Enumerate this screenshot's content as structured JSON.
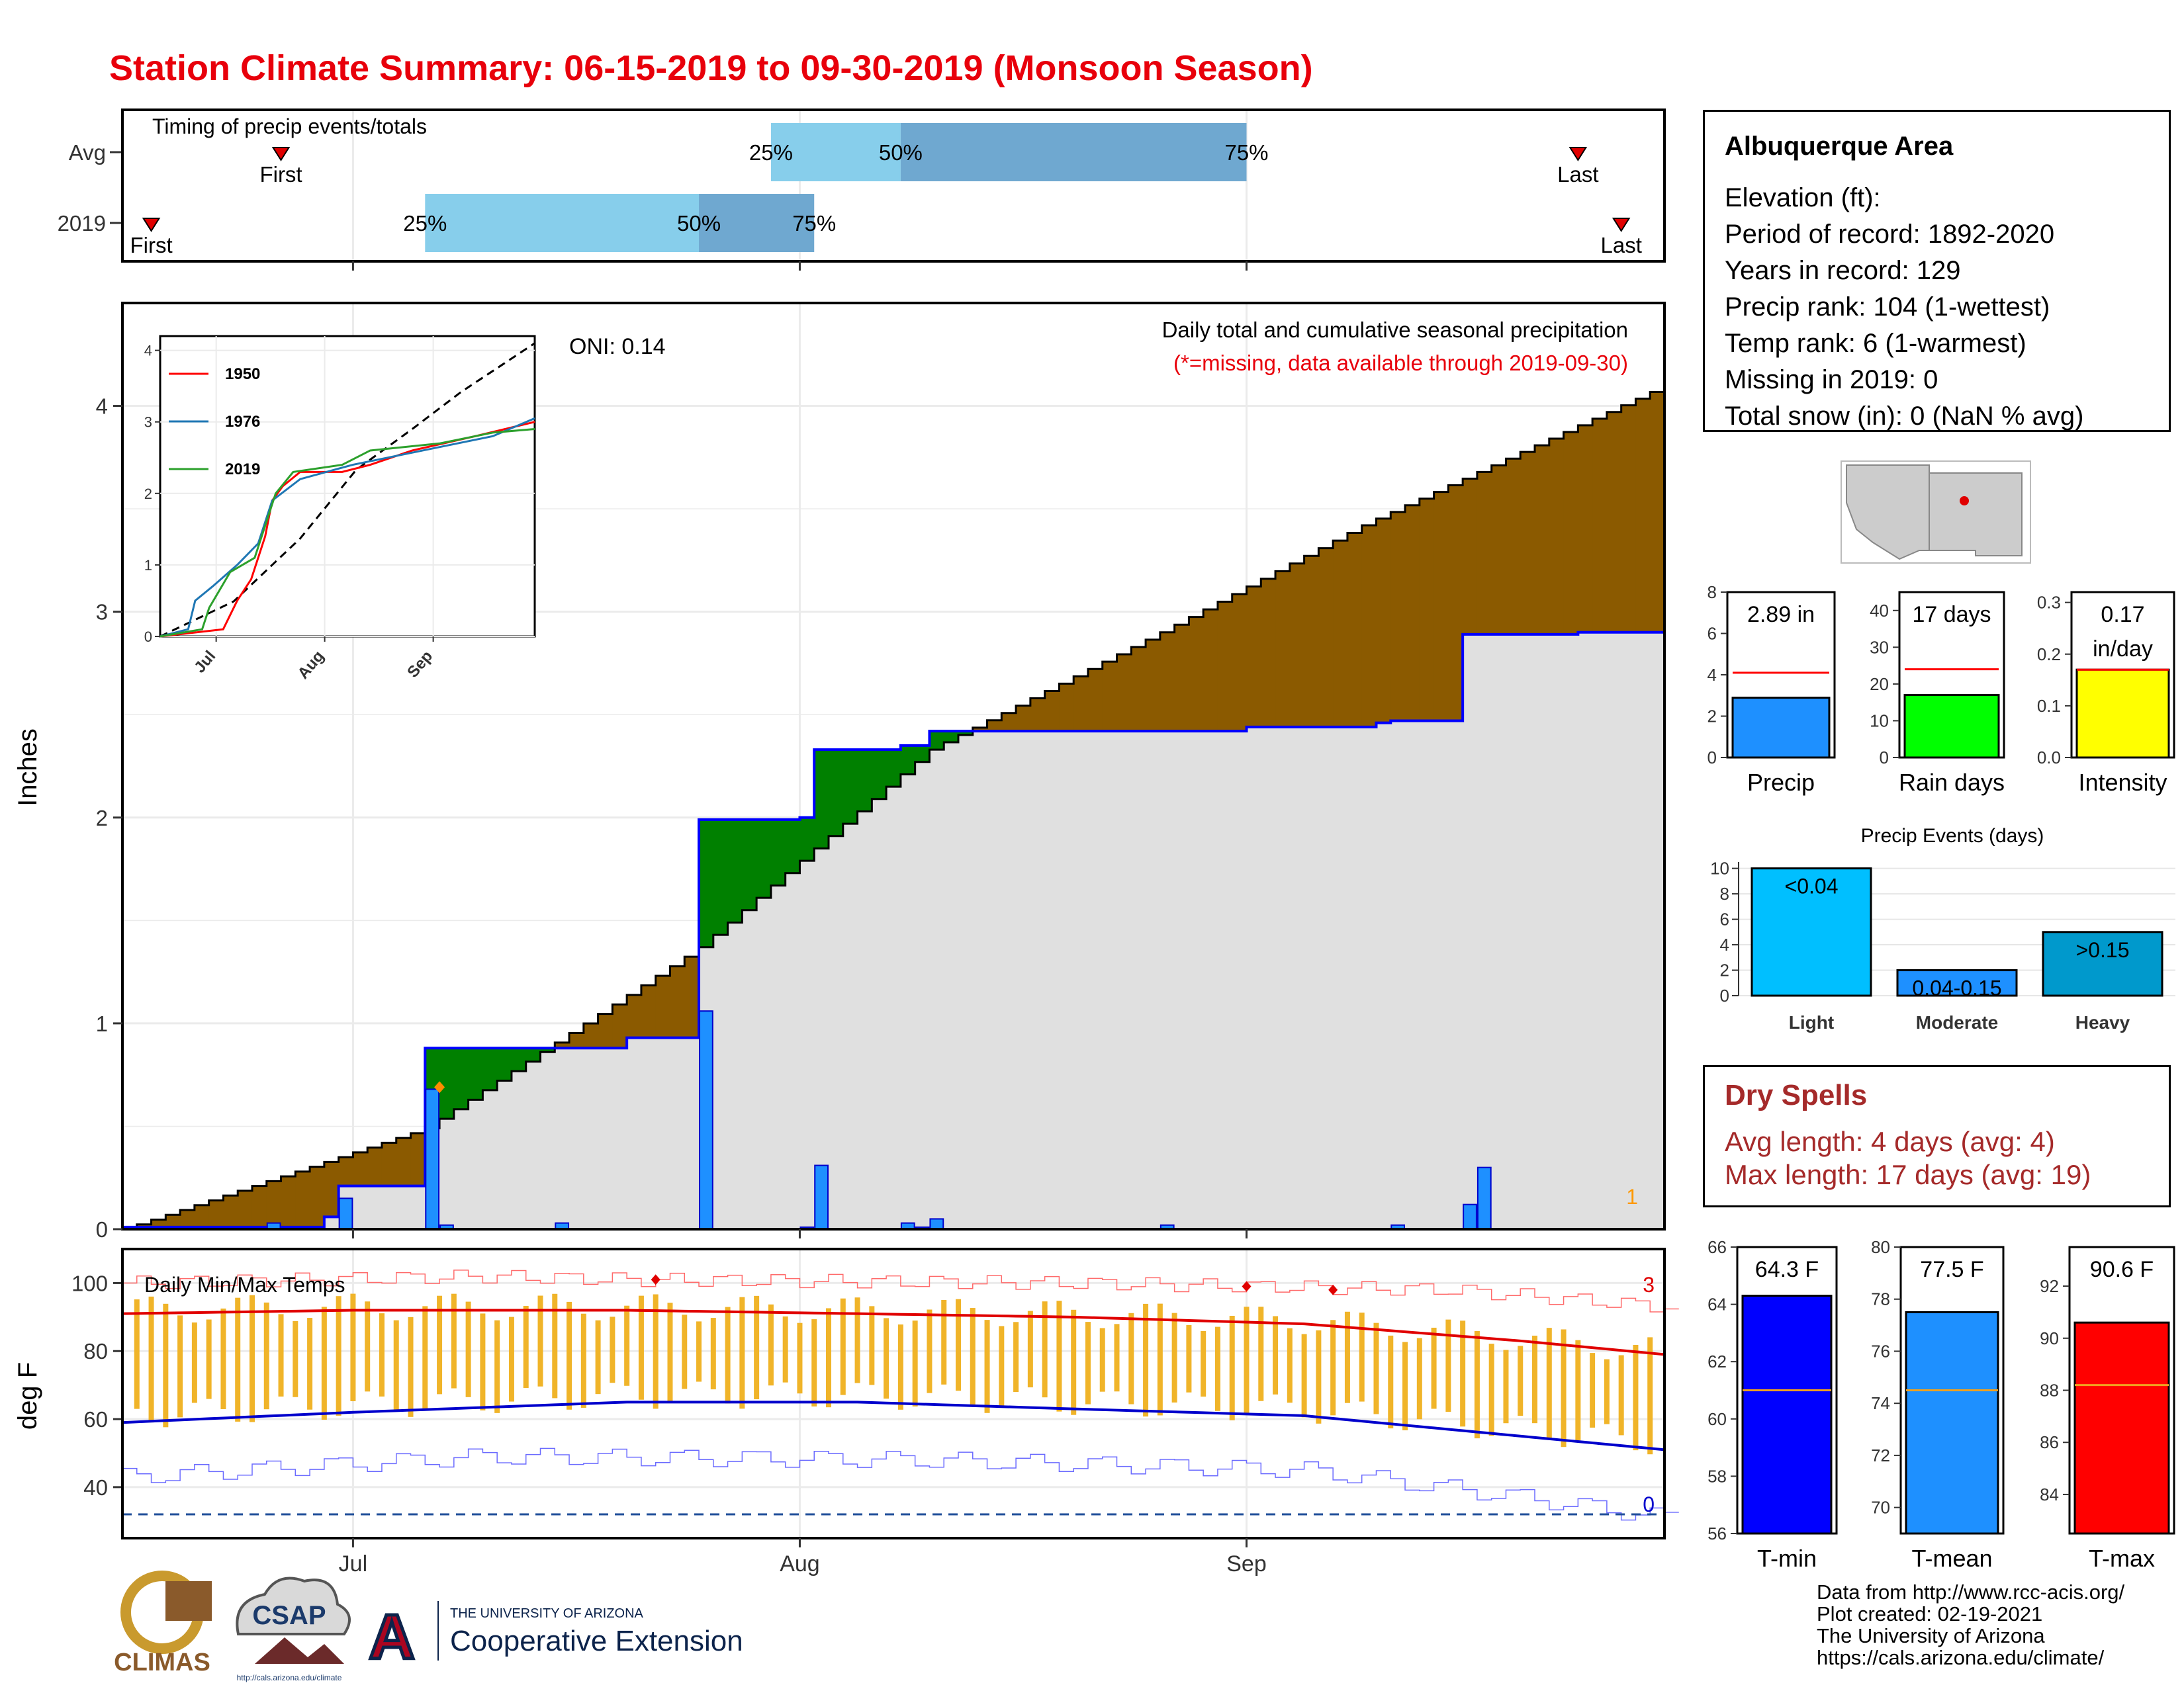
{
  "title": "Station Climate Summary: 06-15-2019 to 09-30-2019 (Monsoon Season)",
  "timing": {
    "label": "Timing of precip events/totals",
    "rows": [
      "Avg",
      "2019"
    ],
    "first_label": "First",
    "last_label": "Last",
    "pct_labels": [
      "25%",
      "50%",
      "75%"
    ],
    "avg": {
      "first": "2019-06-26",
      "q25": "2019-07-30",
      "q50": "2019-08-08",
      "q75": "2019-09-01",
      "last": "2019-09-24"
    },
    "y2019": {
      "first": "2019-06-17",
      "q25": "2019-07-06",
      "q50": "2019-07-25",
      "q75": "2019-08-02",
      "last": "2019-09-27"
    }
  },
  "x_ticks": [
    "Jul",
    "Aug",
    "Sep"
  ],
  "precip_panel": {
    "ylabel": "Inches",
    "annotation_title": "Daily total and cumulative seasonal precipitation",
    "annotation_note": "(*=missing, data available through 2019-09-30)",
    "oni": "ONI: 0.14",
    "missing_count": "1",
    "colors": {
      "above": "#008000",
      "below": "#8b5a00",
      "fill": "#e0e0e0",
      "bar": "#1e90ff",
      "line": "#0000ff"
    }
  },
  "temp_panel": {
    "ylabel": "deg F",
    "label": "Daily Min/Max Temps",
    "count_high": "3",
    "count_low": "0"
  },
  "inset": {
    "legend": [
      "1950",
      "1976",
      "2019"
    ],
    "colors": [
      "#ff0000",
      "#1f77b4",
      "#2ca02c"
    ],
    "x_ticks": [
      "Jul",
      "Aug",
      "Sep"
    ]
  },
  "station": {
    "name": "Albuquerque Area",
    "lines": [
      "Elevation (ft):",
      "Period of record: 1892-2020",
      "Years in record: 129",
      "Precip rank: 104 (1-wettest)",
      "Temp rank: 6 (1-warmest)",
      "Missing in 2019: 0",
      "Total snow (in): 0 (NaN % avg)"
    ]
  },
  "mini_bars": [
    {
      "label": "Precip",
      "value_label": "2.89 in",
      "color": "#1e90ff"
    },
    {
      "label": "Rain days",
      "value_label": "17 days",
      "color": "#00ff00"
    },
    {
      "label": "Intensity",
      "value_label": "0.17\nin/day",
      "color": "#ffff00"
    }
  ],
  "events": {
    "title": "Precip Events (days)",
    "colors": [
      "#00bfff",
      "#1e90ff",
      "#0099cc"
    ]
  },
  "dry_spells": {
    "title": "Dry Spells",
    "avg_line": "Avg length: 4 days (avg: 4)",
    "max_line": "Max length: 17 days (avg: 19)"
  },
  "temp_bars": [
    {
      "label": "T-min",
      "value_label": "64.3 F",
      "color": "#0000ff"
    },
    {
      "label": "T-mean",
      "value_label": "77.5 F",
      "color": "#1e90ff"
    },
    {
      "label": "T-max",
      "value_label": "90.6 F",
      "color": "#ff0000"
    }
  ],
  "footer": [
    "Data from http://www.rcc-acis.org/",
    "Plot created: 02-19-2021",
    "The University of Arizona",
    "https://cals.arizona.edu/climate/"
  ],
  "logos": {
    "climas": "CLIMAS",
    "csap": "CSAP",
    "csap_url": "http://cals.arizona.edu/climate",
    "ua_small": "THE UNIVERSITY OF ARIZONA",
    "ua_big": "Cooperative Extension"
  },
  "chart_data": [
    {
      "type": "area",
      "title": "Daily total and cumulative seasonal precipitation",
      "ylabel": "Inches",
      "xlim": [
        "2019-06-15",
        "2019-09-30"
      ],
      "ylim": [
        0,
        4.5
      ],
      "series": [
        {
          "name": "2019 cumulative",
          "x": [
            "2019-06-15",
            "2019-06-29",
            "2019-06-30",
            "2019-07-05",
            "2019-07-06",
            "2019-07-20",
            "2019-07-25",
            "2019-08-01",
            "2019-08-02",
            "2019-08-08",
            "2019-08-10",
            "2019-08-26",
            "2019-09-01",
            "2019-09-10",
            "2019-09-11",
            "2019-09-16",
            "2019-09-17",
            "2019-09-24",
            "2019-09-30"
          ],
          "y": [
            0.01,
            0.06,
            0.21,
            0.21,
            0.88,
            0.93,
            1.99,
            2.0,
            2.33,
            2.35,
            2.42,
            2.42,
            2.44,
            2.46,
            2.47,
            2.89,
            2.89,
            2.9,
            2.9
          ]
        },
        {
          "name": "Average cumulative",
          "x": [
            "2019-06-15",
            "2019-07-06",
            "2019-07-25",
            "2019-08-10",
            "2019-08-26",
            "2019-09-09",
            "2019-09-30"
          ],
          "y": [
            0.0,
            0.49,
            1.37,
            2.33,
            2.9,
            3.42,
            4.1
          ]
        },
        {
          "name": "Daily precip",
          "x": [
            "2019-06-25",
            "2019-06-30",
            "2019-07-06",
            "2019-07-07",
            "2019-07-15",
            "2019-07-25",
            "2019-08-01",
            "2019-08-02",
            "2019-08-08",
            "2019-08-09",
            "2019-08-10",
            "2019-08-26",
            "2019-09-11",
            "2019-09-16",
            "2019-09-17"
          ],
          "y": [
            0.03,
            0.15,
            0.68,
            0.02,
            0.03,
            1.06,
            0.01,
            0.31,
            0.03,
            0.01,
            0.05,
            0.02,
            0.02,
            0.12,
            0.3
          ]
        }
      ],
      "annotations": [
        "ONI: 0.14",
        "1"
      ]
    },
    {
      "type": "line",
      "title": "Daily Min/Max Temps",
      "ylabel": "deg F",
      "ylim": [
        25,
        110
      ],
      "series": [
        {
          "name": "Avg max",
          "x": [
            "2019-06-15",
            "2019-07-01",
            "2019-07-20",
            "2019-08-05",
            "2019-08-20",
            "2019-09-05",
            "2019-09-20",
            "2019-09-30"
          ],
          "y": [
            91,
            92,
            92,
            91,
            90,
            88,
            83,
            79
          ]
        },
        {
          "name": "Avg min",
          "x": [
            "2019-06-15",
            "2019-07-01",
            "2019-07-20",
            "2019-08-05",
            "2019-08-20",
            "2019-09-05",
            "2019-09-20",
            "2019-09-30"
          ],
          "y": [
            59,
            62,
            65,
            65,
            63,
            61,
            55,
            51
          ]
        },
        {
          "name": "Record high",
          "x": [
            "2019-06-15",
            "2019-07-10",
            "2019-07-20",
            "2019-08-20",
            "2019-09-15",
            "2019-09-30"
          ],
          "y": [
            100,
            102,
            101,
            100,
            98,
            93
          ]
        },
        {
          "name": "Record low",
          "x": [
            "2019-06-15",
            "2019-07-10",
            "2019-08-10",
            "2019-09-05",
            "2019-09-20",
            "2019-09-30"
          ],
          "y": [
            43,
            49,
            48,
            45,
            37,
            31
          ]
        }
      ],
      "annotations": [
        "3",
        "0"
      ]
    },
    {
      "type": "bar",
      "title": "Precip Events (days)",
      "categories": [
        "Light",
        "Moderate",
        "Heavy"
      ],
      "values": [
        10,
        2,
        5
      ],
      "value_labels": [
        "<0.04",
        "0.04-0.15",
        ">0.15"
      ],
      "ylim": [
        0,
        10
      ]
    },
    {
      "type": "bar",
      "categories": [
        "Precip"
      ],
      "values": [
        2.89
      ],
      "average": 4.1,
      "ylim": [
        0,
        8
      ]
    },
    {
      "type": "bar",
      "categories": [
        "Rain days"
      ],
      "values": [
        17
      ],
      "average": 24,
      "ylim": [
        0,
        45
      ]
    },
    {
      "type": "bar",
      "categories": [
        "Intensity"
      ],
      "values": [
        0.17
      ],
      "average": 0.17,
      "ylim": [
        0,
        0.32
      ]
    },
    {
      "type": "bar",
      "categories": [
        "T-min"
      ],
      "values": [
        64.3
      ],
      "average": 61.0,
      "ylim": [
        56,
        66
      ]
    },
    {
      "type": "bar",
      "categories": [
        "T-mean"
      ],
      "values": [
        77.5
      ],
      "average": 74.5,
      "ylim": [
        69,
        80
      ]
    },
    {
      "type": "bar",
      "categories": [
        "T-max"
      ],
      "values": [
        90.6
      ],
      "average": 88.2,
      "ylim": [
        82.5,
        93.5
      ]
    }
  ]
}
